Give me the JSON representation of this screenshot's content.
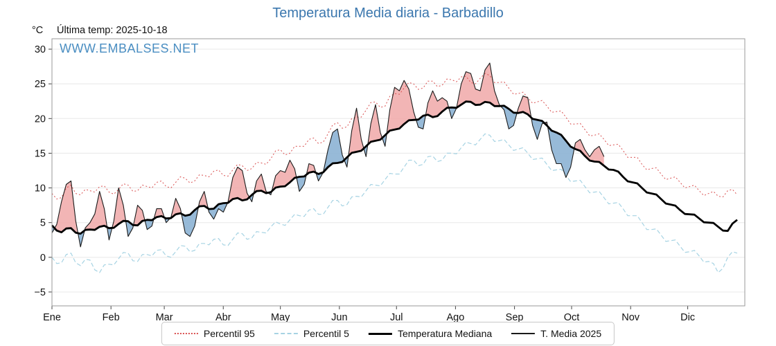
{
  "title": "Temperatura Media diaria - Barbadillo",
  "ylabel_unit": "°C",
  "last_temp_label": "Última temp: 2025-10-18",
  "watermark": "WWW.EMBALSES.NET",
  "colors": {
    "title": "#3b77ae",
    "watermark": "#4a8ec2",
    "axis": "#444444",
    "grid": "#e8e8e8",
    "box": "#999999",
    "fill_above": "#f0a8a8",
    "fill_below": "#8cb2d4"
  },
  "chart_data": {
    "type": "line",
    "title": "Temperatura Media diaria - Barbadillo",
    "xlabel": "",
    "ylabel": "°C",
    "x_unit": "day_of_year",
    "x_step": 5,
    "xlim": [
      0,
      364
    ],
    "ylim": [
      -7,
      31.5
    ],
    "yticks": [
      -5,
      0,
      5,
      10,
      15,
      20,
      25,
      30
    ],
    "grid": "horizontal",
    "legend_position": "bottom-center",
    "months": [
      "Ene",
      "Feb",
      "Mar",
      "Abr",
      "May",
      "Jun",
      "Jul",
      "Ago",
      "Sep",
      "Oct",
      "Nov",
      "Dic"
    ],
    "month_start_days": [
      0,
      31,
      59,
      90,
      120,
      151,
      181,
      212,
      243,
      273,
      304,
      334
    ],
    "fill_above": "#f0a8a8",
    "fill_below": "#8cb2d4",
    "fill_note": "area between T. Media 2025 and Temperatura Mediana; red where 2025 above median, blue where below",
    "series": [
      {
        "name": "Percentil 95",
        "style": "dotted",
        "color": "#d94f4f",
        "width": 1,
        "jitter": 0.5,
        "values": [
          9.2,
          8.6,
          10.4,
          9.0,
          9.6,
          10.2,
          9.4,
          9.8,
          10.4,
          9.6,
          10.2,
          10.8,
          10.2,
          10.8,
          11.4,
          11.0,
          11.8,
          12.4,
          11.8,
          12.6,
          13.2,
          12.8,
          13.6,
          14.2,
          15.5,
          15.0,
          16.0,
          17.0,
          16.4,
          17.8,
          19.4,
          18.8,
          20.2,
          21.2,
          22.4,
          21.8,
          23.6,
          24.4,
          25.0,
          24.4,
          25.4,
          24.8,
          25.6,
          26.0,
          25.2,
          25.8,
          26.2,
          25.2,
          24.4,
          23.6,
          23.0,
          22.4,
          21.8,
          21.0,
          20.2,
          19.2,
          18.4,
          17.6,
          17.0,
          16.2,
          15.4,
          14.4,
          13.4,
          12.8,
          12.0,
          11.4,
          10.8,
          10.2,
          9.6,
          9.2,
          8.8,
          9.6,
          9.0
        ]
      },
      {
        "name": "Percentil 5",
        "style": "dashed",
        "color": "#a6d3e3",
        "width": 1.2,
        "jitter": 0.5,
        "values": [
          0.0,
          -0.8,
          0.6,
          -1.2,
          -0.4,
          -2.2,
          -1.0,
          -0.2,
          0.6,
          -0.6,
          0.4,
          1.0,
          0.2,
          0.8,
          1.6,
          1.0,
          2.0,
          2.6,
          1.8,
          2.6,
          3.4,
          2.8,
          3.6,
          4.4,
          4.8,
          5.4,
          6.0,
          6.8,
          6.2,
          7.2,
          8.2,
          7.6,
          8.8,
          9.6,
          10.4,
          11.2,
          12.0,
          13.0,
          14.0,
          13.4,
          14.6,
          14.0,
          15.0,
          15.8,
          16.4,
          17.0,
          17.6,
          16.8,
          16.2,
          15.6,
          15.0,
          14.2,
          13.4,
          12.6,
          11.8,
          11.0,
          10.2,
          9.4,
          8.6,
          7.8,
          7.0,
          6.0,
          5.0,
          4.0,
          3.2,
          2.4,
          1.6,
          0.8,
          0.2,
          -0.6,
          -2.2,
          0.0,
          0.6
        ]
      },
      {
        "name": "Temperatura Mediana",
        "style": "solid",
        "color": "#000000",
        "width": 2.8,
        "jitter": 0.25,
        "values": [
          4.6,
          3.6,
          4.2,
          3.4,
          4.0,
          4.4,
          4.2,
          4.8,
          5.2,
          4.6,
          5.4,
          5.8,
          5.6,
          6.2,
          6.0,
          6.8,
          7.4,
          7.0,
          7.8,
          8.4,
          8.2,
          9.0,
          9.6,
          9.4,
          10.2,
          10.8,
          11.6,
          12.2,
          12.0,
          13.0,
          13.6,
          14.4,
          15.2,
          16.0,
          16.8,
          17.6,
          18.4,
          19.2,
          19.8,
          20.4,
          20.2,
          21.0,
          21.6,
          22.0,
          22.4,
          22.0,
          22.3,
          21.8,
          21.4,
          20.8,
          20.6,
          19.8,
          19.0,
          18.0,
          16.8,
          15.6,
          14.6,
          13.8,
          13.2,
          12.6,
          11.6,
          10.8,
          10.0,
          9.2,
          8.4,
          7.6,
          6.8,
          6.2,
          5.6,
          5.0,
          4.4,
          3.8,
          5.4
        ]
      },
      {
        "name": "T. Media 2025",
        "style": "solid",
        "color": "#1a1a1a",
        "width": 1.1,
        "jitter": 1.0,
        "last_day": 290,
        "values": [
          3.5,
          8.0,
          11.0,
          1.5,
          5.0,
          9.5,
          2.5,
          10.0,
          3.0,
          7.5,
          4.0,
          7.0,
          5.0,
          8.5,
          3.5,
          4.5,
          9.5,
          5.5,
          6.5,
          11.5,
          12.5,
          8.0,
          12.0,
          9.0,
          12.5,
          14.0,
          9.5,
          13.5,
          11.0,
          15.5,
          18.5,
          13.0,
          21.5,
          14.5,
          22.0,
          16.0,
          24.5,
          25.5,
          21.0,
          18.5,
          24.0,
          23.0,
          20.0,
          25.0,
          26.5,
          24.0,
          28.0,
          22.0,
          18.5,
          21.5,
          23.0,
          17.0,
          19.5,
          13.5,
          11.5,
          16.5,
          15.5,
          15.5,
          14.5
        ]
      }
    ]
  }
}
